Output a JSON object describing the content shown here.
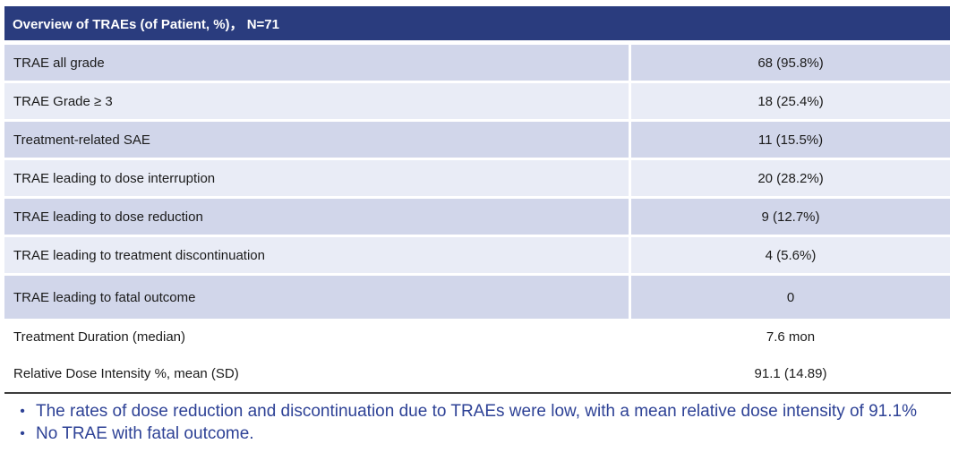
{
  "table": {
    "header": "Overview of TRAEs (of Patient, %)， N=71",
    "rows": [
      {
        "label": "TRAE all grade",
        "value": "68 (95.8%)",
        "shade": "dark"
      },
      {
        "label": "TRAE Grade ≥ 3",
        "value": "18 (25.4%)",
        "shade": "light"
      },
      {
        "label": "Treatment-related SAE",
        "value": "11 (15.5%)",
        "shade": "dark"
      },
      {
        "label": "TRAE leading to dose interruption",
        "value": "20 (28.2%)",
        "shade": "light"
      },
      {
        "label": "TRAE leading to dose reduction",
        "value": "9 (12.7%)",
        "shade": "dark"
      },
      {
        "label": "TRAE leading to treatment discontinuation",
        "value": "4 (5.6%)",
        "shade": "light"
      },
      {
        "label": "TRAE leading to fatal outcome",
        "value": "0",
        "shade": "dark"
      },
      {
        "label": "Treatment Duration (median)",
        "value": "7.6 mon",
        "shade": "white"
      },
      {
        "label": "Relative Dose Intensity %, mean (SD)",
        "value": "91.1 (14.89)",
        "shade": "white"
      }
    ]
  },
  "notes": {
    "bullet_char": "•",
    "items": [
      "The rates of dose reduction and discontinuation due to TRAEs were low, with a mean relative dose intensity of 91.1%",
      "No TRAE with fatal outcome."
    ]
  },
  "colors": {
    "header_bg": "#2a3c7e",
    "row_dark": "#d1d6ea",
    "row_light": "#e9ecf6",
    "note_text": "#2e4296",
    "rule": "#3c3c3c"
  }
}
